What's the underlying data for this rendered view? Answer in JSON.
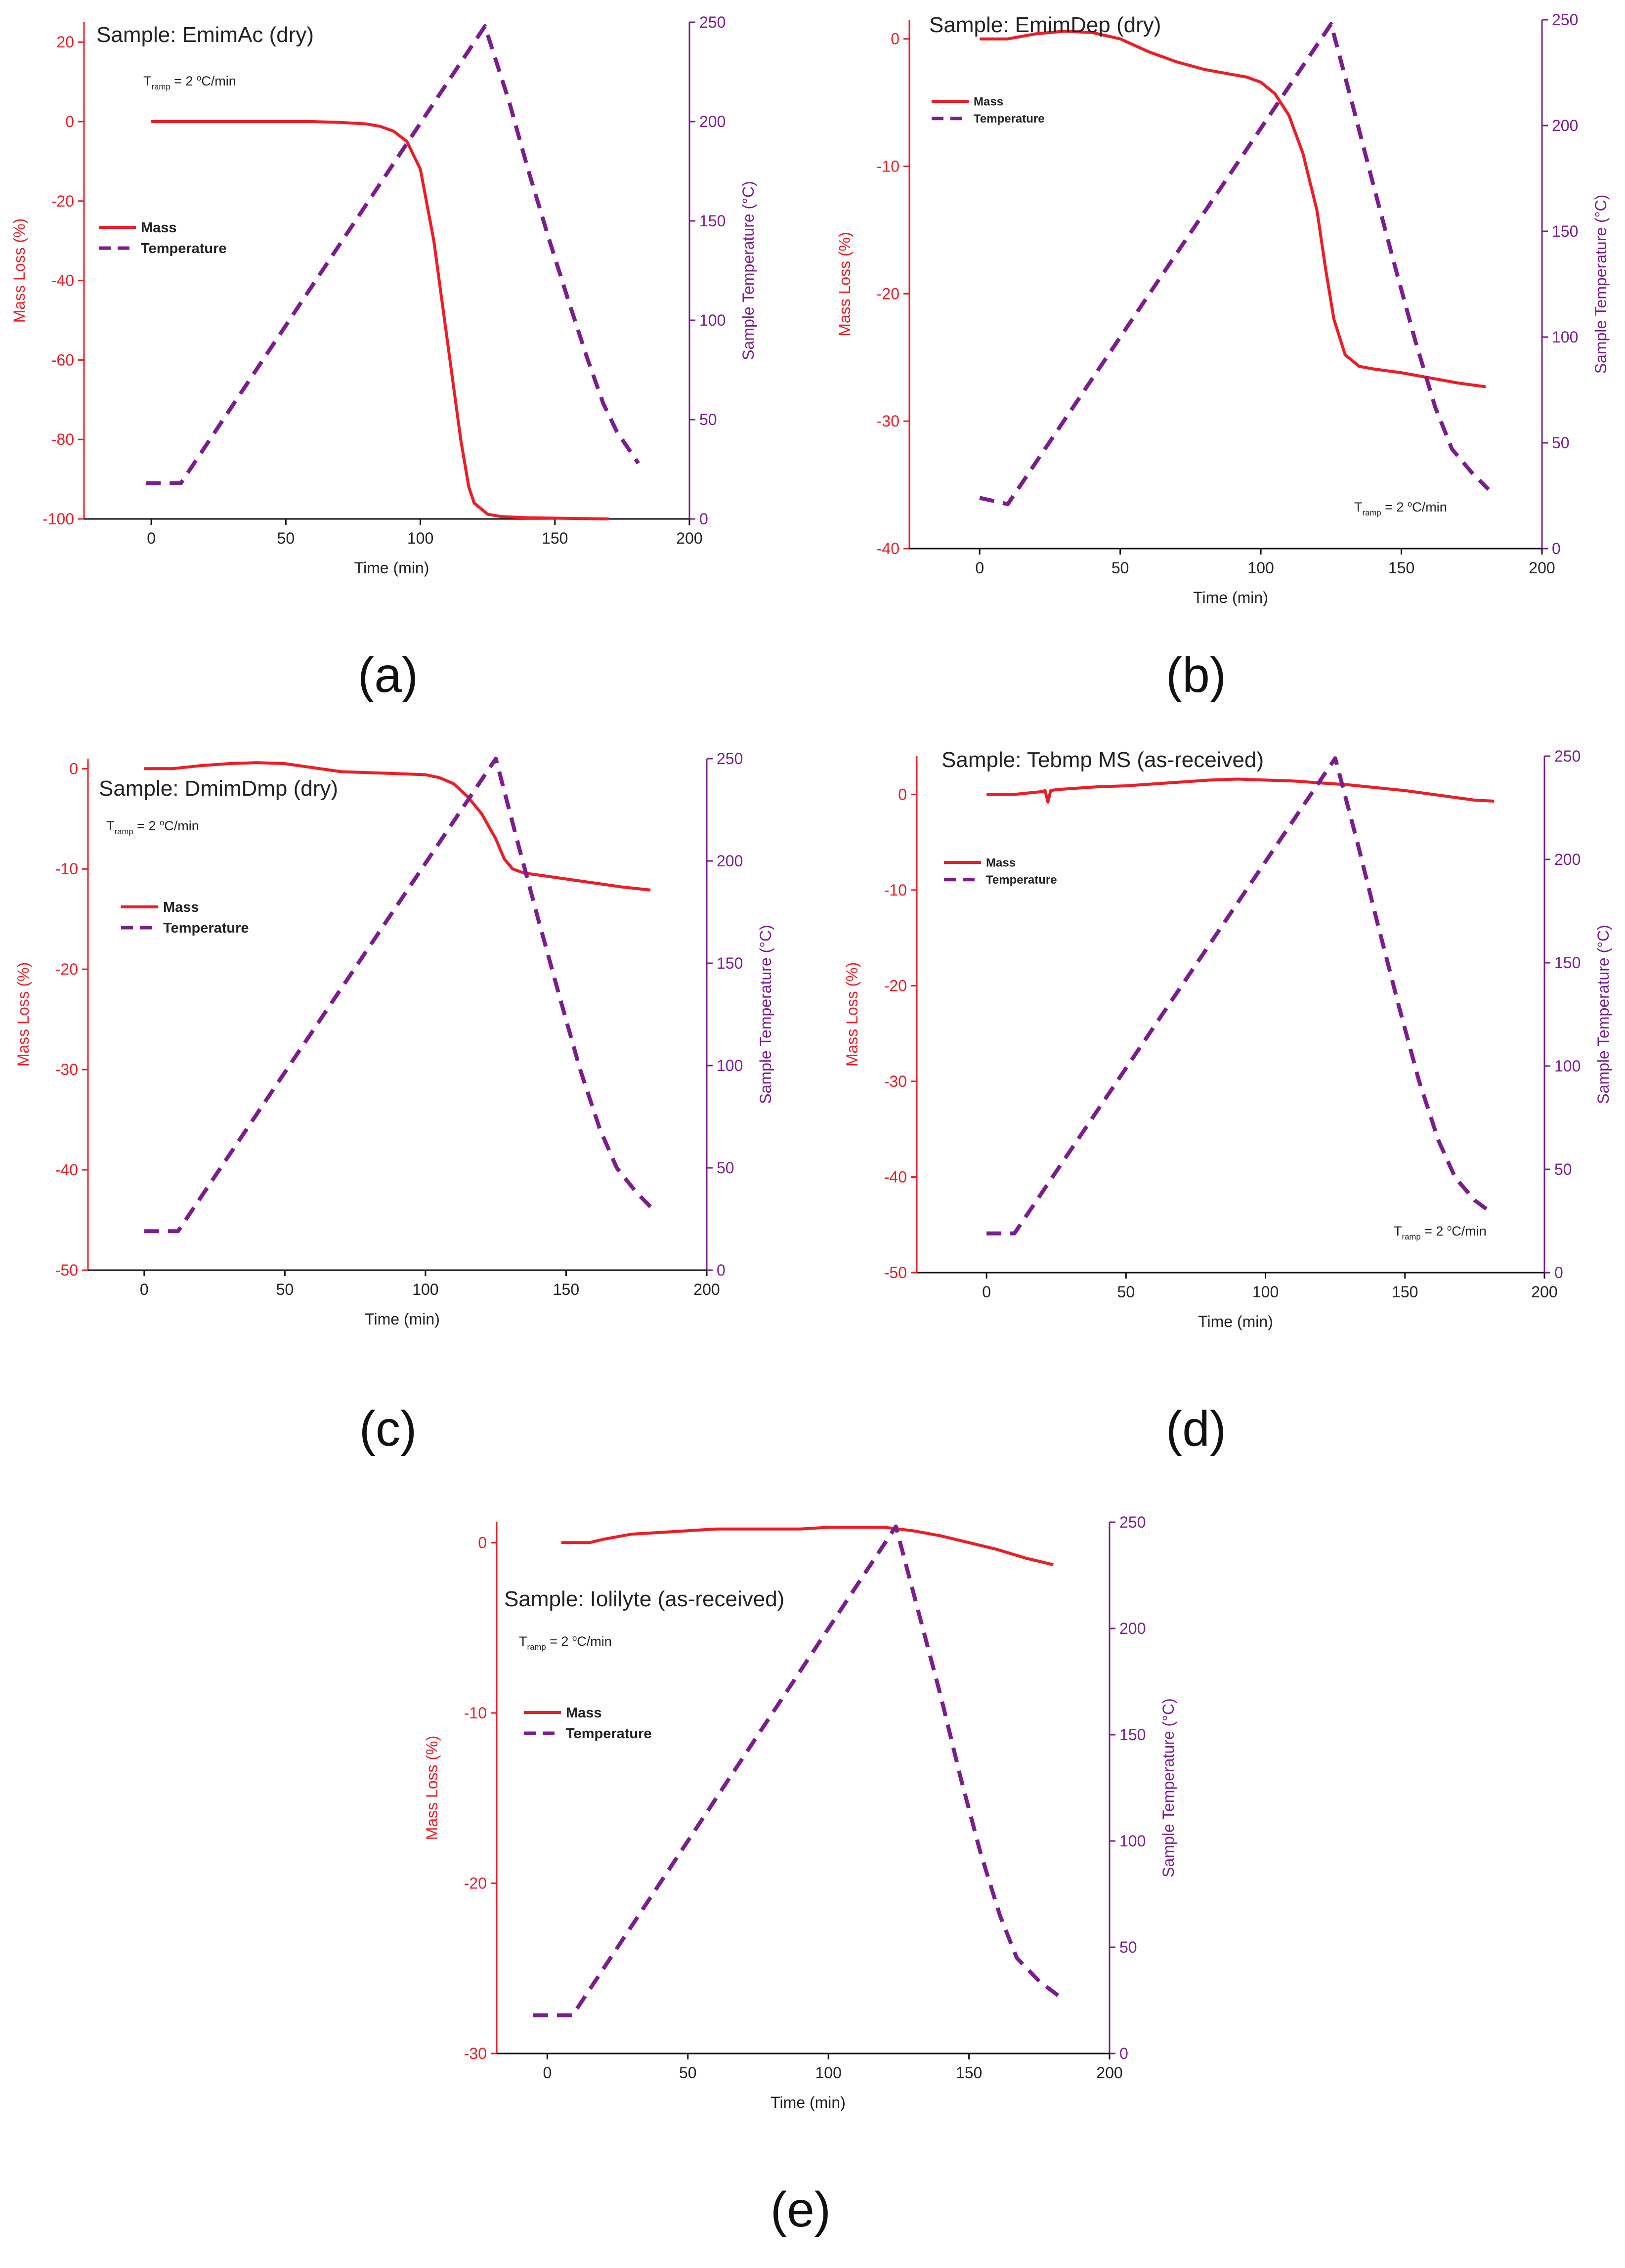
{
  "colors": {
    "mass": "#ee1c25",
    "temperature": "#7b1d8e",
    "axis_text": "#222222"
  },
  "chart_data": [
    {
      "panel": "(a)",
      "type": "line",
      "title": "Sample: EmimAc (dry)",
      "ramp": {
        "prefix": "T",
        "sub": "ramp",
        "eq": " = 2 ",
        "deg": "o",
        "unit": "C/min"
      },
      "xlabel": "Time (min)",
      "ylabel_left": "Mass Loss (%)",
      "ylabel_right": "Sample Temperature (°C)",
      "xlim": [
        -25,
        200
      ],
      "ylim_left": [
        -100,
        25
      ],
      "ylim_right": [
        0,
        250
      ],
      "xticks": [
        0,
        50,
        100,
        150,
        200
      ],
      "yticks_left": [
        -100,
        -80,
        -60,
        -40,
        -20,
        0,
        20
      ],
      "yticks_right": [
        0,
        50,
        100,
        150,
        200,
        250
      ],
      "legend": [
        "Mass",
        "Temperature"
      ],
      "series": [
        {
          "name": "Mass",
          "axis": "left",
          "style": "solid",
          "x": [
            0,
            20,
            40,
            60,
            70,
            80,
            85,
            90,
            95,
            100,
            105,
            110,
            115,
            118,
            120,
            125,
            130,
            140,
            150,
            160,
            170
          ],
          "y": [
            0,
            0,
            0,
            0,
            -0.2,
            -0.6,
            -1.2,
            -2.4,
            -5,
            -12,
            -30,
            -55,
            -80,
            -92,
            -96,
            -98.8,
            -99.4,
            -99.7,
            -99.8,
            -99.9,
            -100
          ]
        },
        {
          "name": "Temperature",
          "axis": "right",
          "style": "dashed",
          "x": [
            -2,
            11,
            124,
            133,
            140,
            148,
            155,
            162,
            168,
            173,
            181
          ],
          "y": [
            18,
            18,
            248,
            210,
            176,
            140,
            110,
            81,
            58,
            44,
            28
          ]
        }
      ]
    },
    {
      "panel": "(b)",
      "type": "line",
      "title": "Sample: EmimDep (dry)",
      "ramp": {
        "prefix": "T",
        "sub": "ramp",
        "eq": " = 2 ",
        "deg": "o",
        "unit": "C/min"
      },
      "xlabel": "Time (min)",
      "ylabel_left": "Mass Loss (%)",
      "ylabel_right": "Sample Temperature (°C)",
      "xlim": [
        -25,
        200
      ],
      "ylim_left": [
        -40,
        1.5
      ],
      "ylim_right": [
        0,
        250
      ],
      "xticks": [
        0,
        50,
        100,
        150,
        200
      ],
      "yticks_left": [
        -40,
        -30,
        -20,
        -10,
        0
      ],
      "yticks_right": [
        0,
        50,
        100,
        150,
        200,
        250
      ],
      "legend": [
        "Mass",
        "Temperature"
      ],
      "series": [
        {
          "name": "Mass",
          "axis": "left",
          "style": "solid",
          "x": [
            0,
            10,
            20,
            30,
            40,
            50,
            60,
            70,
            80,
            90,
            95,
            100,
            105,
            110,
            115,
            120,
            123,
            126,
            130,
            135,
            140,
            150,
            160,
            170,
            180
          ],
          "y": [
            0,
            0,
            0.4,
            0.6,
            0.5,
            0,
            -1,
            -1.8,
            -2.4,
            -2.8,
            -3,
            -3.4,
            -4.3,
            -6,
            -9,
            -13.5,
            -18,
            -22,
            -24.8,
            -25.7,
            -25.9,
            -26.2,
            -26.6,
            -27,
            -27.3
          ]
        },
        {
          "name": "Temperature",
          "axis": "right",
          "style": "dashed",
          "x": [
            0,
            10,
            125,
            133,
            140,
            148,
            155,
            162,
            168,
            175,
            181
          ],
          "y": [
            24,
            21,
            248,
            208,
            172,
            132,
            98,
            67,
            47,
            36,
            28
          ]
        }
      ]
    },
    {
      "panel": "(c)",
      "type": "line",
      "title": "Sample: DmimDmp (dry)",
      "ramp": {
        "prefix": "T",
        "sub": "ramp",
        "eq": " = 2 ",
        "deg": "o",
        "unit": "C/min"
      },
      "xlabel": "Time (min)",
      "ylabel_left": "Mass Loss (%)",
      "ylabel_right": "Sample Temperature (°C)",
      "xlim": [
        -20,
        200
      ],
      "ylim_left": [
        -50,
        1
      ],
      "ylim_right": [
        0,
        250
      ],
      "xticks": [
        0,
        50,
        100,
        150,
        200
      ],
      "yticks_left": [
        -50,
        -40,
        -30,
        -20,
        -10,
        0
      ],
      "yticks_right": [
        0,
        50,
        100,
        150,
        200,
        250
      ],
      "legend": [
        "Mass",
        "Temperature"
      ],
      "series": [
        {
          "name": "Mass",
          "axis": "left",
          "style": "solid",
          "x": [
            0,
            10,
            20,
            30,
            40,
            50,
            60,
            70,
            80,
            90,
            100,
            105,
            110,
            115,
            120,
            125,
            128,
            131,
            135,
            140,
            150,
            160,
            170,
            180
          ],
          "y": [
            0,
            0,
            0.3,
            0.5,
            0.6,
            0.5,
            0.1,
            -0.3,
            -0.4,
            -0.5,
            -0.6,
            -0.9,
            -1.5,
            -2.8,
            -4.5,
            -7,
            -9,
            -10,
            -10.4,
            -10.6,
            -11,
            -11.4,
            -11.8,
            -12.1
          ]
        },
        {
          "name": "Temperature",
          "axis": "right",
          "style": "dashed",
          "x": [
            0,
            12,
            125,
            133,
            140,
            148,
            155,
            162,
            168,
            175,
            180
          ],
          "y": [
            19,
            19,
            250,
            208,
            172,
            132,
            98,
            69,
            50,
            38,
            31
          ]
        }
      ]
    },
    {
      "panel": "(d)",
      "type": "line",
      "title": "Sample: Tebmp MS (as-received)",
      "ramp": {
        "prefix": "T",
        "sub": "ramp",
        "eq": " = 2 ",
        "deg": "o",
        "unit": "C/min"
      },
      "xlabel": "Time (min)",
      "ylabel_left": "Mass Loss (%)",
      "ylabel_right": "Sample Temperature (°C)",
      "xlim": [
        -25,
        200
      ],
      "ylim_left": [
        -50,
        4
      ],
      "ylim_right": [
        0,
        250
      ],
      "xticks": [
        0,
        50,
        100,
        150,
        200
      ],
      "yticks_left": [
        -50,
        -40,
        -30,
        -20,
        -10,
        0
      ],
      "yticks_right": [
        0,
        50,
        100,
        150,
        200,
        250
      ],
      "legend": [
        "Mass",
        "Temperature"
      ],
      "series": [
        {
          "name": "Mass",
          "axis": "left",
          "style": "solid",
          "x": [
            0,
            10,
            20,
            21,
            22,
            23,
            25,
            30,
            40,
            50,
            60,
            70,
            80,
            90,
            100,
            110,
            120,
            130,
            140,
            150,
            160,
            170,
            175,
            182
          ],
          "y": [
            0,
            0,
            0.3,
            0.4,
            -0.8,
            0.4,
            0.5,
            0.6,
            0.8,
            0.9,
            1.1,
            1.3,
            1.5,
            1.6,
            1.5,
            1.4,
            1.2,
            1.0,
            0.7,
            0.4,
            0,
            -0.4,
            -0.6,
            -0.7
          ]
        },
        {
          "name": "Temperature",
          "axis": "right",
          "style": "dashed",
          "x": [
            0,
            10,
            125,
            133,
            140,
            148,
            155,
            162,
            168,
            175,
            181
          ],
          "y": [
            19,
            19,
            249,
            208,
            170,
            128,
            93,
            64,
            46,
            35,
            29
          ]
        }
      ]
    },
    {
      "panel": "(e)",
      "type": "line",
      "title": "Sample: Iolilyte (as-received)",
      "ramp": {
        "prefix": "T",
        "sub": "ramp",
        "eq": " = 2 ",
        "deg": "o",
        "unit": "C/min"
      },
      "xlabel": "Time (min)",
      "ylabel_left": "Mass Loss (%)",
      "ylabel_right": "Sample Temperature (°C)",
      "xlim": [
        -18,
        200
      ],
      "ylim_left": [
        -30,
        1.2
      ],
      "ylim_right": [
        0,
        250
      ],
      "xticks": [
        0,
        50,
        100,
        150,
        200
      ],
      "yticks_left": [
        -30,
        -20,
        -10,
        0
      ],
      "yticks_right": [
        0,
        50,
        100,
        150,
        200,
        250
      ],
      "legend": [
        "Mass",
        "Temperature"
      ],
      "series": [
        {
          "name": "Mass",
          "axis": "left",
          "style": "solid",
          "x": [
            5,
            15,
            20,
            30,
            40,
            50,
            60,
            70,
            80,
            90,
            100,
            110,
            120,
            130,
            140,
            150,
            160,
            170,
            175,
            180
          ],
          "y": [
            0,
            0,
            0.2,
            0.5,
            0.6,
            0.7,
            0.8,
            0.8,
            0.8,
            0.8,
            0.9,
            0.9,
            0.9,
            0.7,
            0.4,
            0,
            -0.4,
            -0.9,
            -1.1,
            -1.3
          ]
        },
        {
          "name": "Temperature",
          "axis": "right",
          "style": "dashed",
          "x": [
            -5,
            9,
            124,
            132,
            140,
            147,
            154,
            161,
            167,
            175,
            182
          ],
          "y": [
            18,
            18,
            248,
            208,
            168,
            130,
            95,
            65,
            45,
            34,
            27
          ]
        }
      ]
    }
  ]
}
